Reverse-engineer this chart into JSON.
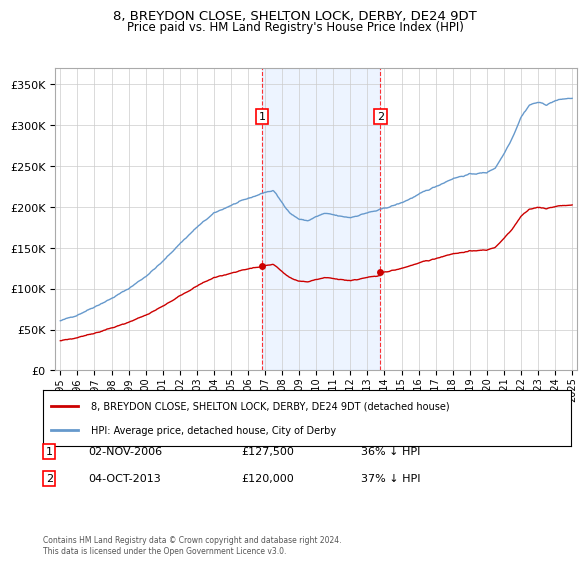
{
  "title": "8, BREYDON CLOSE, SHELTON LOCK, DERBY, DE24 9DT",
  "subtitle": "Price paid vs. HM Land Registry's House Price Index (HPI)",
  "hpi_color": "#6699cc",
  "price_color": "#cc0000",
  "background_color": "#ffffff",
  "plot_bg_color": "#ffffff",
  "ylim": [
    0,
    370000
  ],
  "yticks": [
    0,
    50000,
    100000,
    150000,
    200000,
    250000,
    300000,
    350000
  ],
  "sale1": {
    "date_label": "02-NOV-2006",
    "price": 127500,
    "hpi_pct": "36% ↓ HPI",
    "x": 2006.83
  },
  "sale2": {
    "date_label": "04-OCT-2013",
    "price": 120000,
    "hpi_pct": "37% ↓ HPI",
    "x": 2013.75
  },
  "legend_line1": "8, BREYDON CLOSE, SHELTON LOCK, DERBY, DE24 9DT (detached house)",
  "legend_line2": "HPI: Average price, detached house, City of Derby",
  "footnote": "Contains HM Land Registry data © Crown copyright and database right 2024.\nThis data is licensed under the Open Government Licence v3.0.",
  "shade_color": "#cce0ff",
  "table_rows": [
    [
      "1",
      "02-NOV-2006",
      "£127,500",
      "36% ↓ HPI"
    ],
    [
      "2",
      "04-OCT-2013",
      "£120,000",
      "37% ↓ HPI"
    ]
  ]
}
